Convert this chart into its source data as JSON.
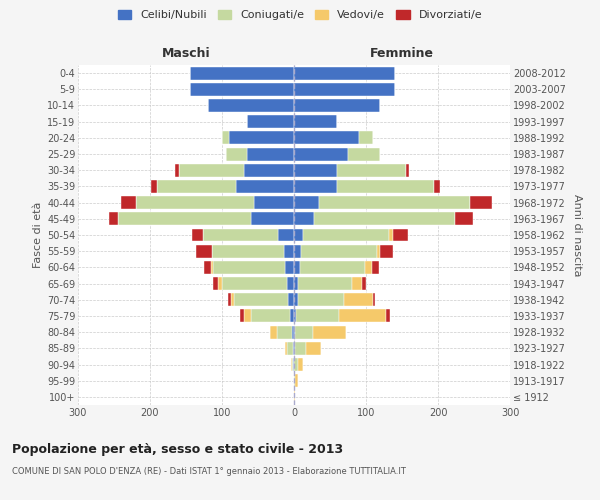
{
  "age_groups": [
    "100+",
    "95-99",
    "90-94",
    "85-89",
    "80-84",
    "75-79",
    "70-74",
    "65-69",
    "60-64",
    "55-59",
    "50-54",
    "45-49",
    "40-44",
    "35-39",
    "30-34",
    "25-29",
    "20-24",
    "15-19",
    "10-14",
    "5-9",
    "0-4"
  ],
  "birth_years": [
    "≤ 1912",
    "1913-1917",
    "1918-1922",
    "1923-1927",
    "1928-1932",
    "1933-1937",
    "1938-1942",
    "1943-1947",
    "1948-1952",
    "1953-1957",
    "1958-1962",
    "1963-1967",
    "1968-1972",
    "1973-1977",
    "1978-1982",
    "1983-1987",
    "1988-1992",
    "1993-1997",
    "1998-2002",
    "2003-2007",
    "2008-2012"
  ],
  "colors": {
    "celibe": "#4472c4",
    "coniugato": "#c5d9a0",
    "vedovo": "#f5c96a",
    "divorziato": "#c0282a"
  },
  "male": {
    "celibe": [
      0,
      0,
      1,
      2,
      3,
      5,
      8,
      10,
      12,
      14,
      22,
      60,
      55,
      80,
      70,
      65,
      90,
      65,
      120,
      145,
      145
    ],
    "coniugato": [
      0,
      0,
      2,
      8,
      20,
      55,
      75,
      90,
      100,
      100,
      105,
      185,
      165,
      110,
      90,
      30,
      10,
      0,
      0,
      0,
      0
    ],
    "vedovo": [
      0,
      0,
      1,
      3,
      10,
      10,
      5,
      5,
      3,
      0,
      0,
      0,
      0,
      0,
      0,
      0,
      0,
      0,
      0,
      0,
      0
    ],
    "divorziato": [
      0,
      0,
      0,
      0,
      0,
      5,
      3,
      8,
      10,
      22,
      15,
      12,
      20,
      8,
      5,
      0,
      0,
      0,
      0,
      0,
      0
    ]
  },
  "female": {
    "nubile": [
      0,
      0,
      0,
      2,
      2,
      3,
      5,
      5,
      8,
      10,
      12,
      28,
      35,
      60,
      60,
      75,
      90,
      60,
      120,
      140,
      140
    ],
    "coniugata": [
      0,
      2,
      5,
      15,
      25,
      60,
      65,
      75,
      90,
      105,
      120,
      195,
      210,
      135,
      95,
      45,
      20,
      0,
      0,
      0,
      0
    ],
    "vedova": [
      2,
      4,
      8,
      20,
      45,
      65,
      40,
      15,
      10,
      5,
      5,
      0,
      0,
      0,
      0,
      0,
      0,
      0,
      0,
      0,
      0
    ],
    "divorziata": [
      0,
      0,
      0,
      0,
      0,
      5,
      3,
      5,
      10,
      18,
      22,
      25,
      30,
      8,
      5,
      0,
      0,
      0,
      0,
      0,
      0
    ]
  },
  "title": "Popolazione per età, sesso e stato civile - 2013",
  "subtitle": "COMUNE DI SAN POLO D'ENZA (RE) - Dati ISTAT 1° gennaio 2013 - Elaborazione TUTTITALIA.IT",
  "xlabel_left": "Maschi",
  "xlabel_right": "Femmine",
  "ylabel_left": "Fasce di età",
  "ylabel_right": "Anni di nascita",
  "xlim": 300,
  "legend_labels": [
    "Celibi/Nubili",
    "Coniugati/e",
    "Vedovi/e",
    "Divorziati/e"
  ],
  "background_color": "#f5f5f5",
  "plot_bg_color": "#ffffff"
}
